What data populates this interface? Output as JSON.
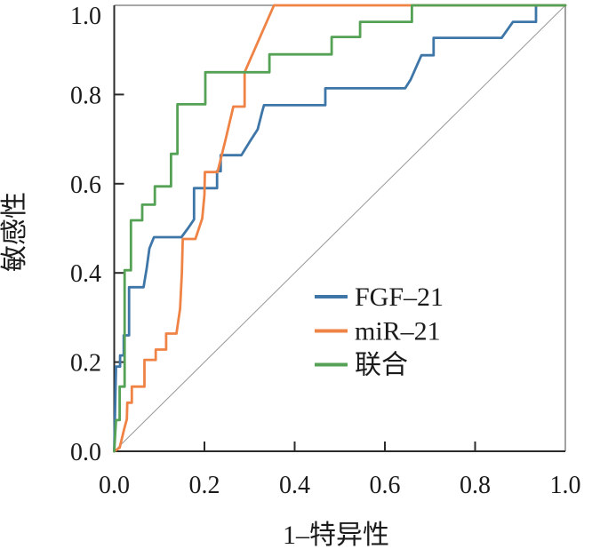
{
  "figure": {
    "background": "#ffffff"
  },
  "chart_data": {
    "type": "line",
    "subtype": "roc-curves",
    "title": "",
    "xlabel": "1–特异性",
    "ylabel": "敏感性",
    "xlim": [
      0,
      1
    ],
    "ylim": [
      0,
      1
    ],
    "grid": false,
    "legend_position": "inside-middle-right",
    "axis_ticks": {
      "x": {
        "values": [
          0,
          0.2,
          0.4,
          0.6,
          0.8,
          1
        ],
        "labels": [
          "0.0",
          "0.2",
          "0.4",
          "0.6",
          "0.8",
          "1.0"
        ],
        "marked": [
          0.2,
          0.4,
          0.6,
          0.8
        ]
      },
      "y": {
        "values": [
          0,
          0.2,
          0.4,
          0.6,
          0.8,
          1
        ],
        "labels": [
          "0.0",
          "0.2",
          "0.4",
          "0.6",
          "0.8",
          "1.0"
        ],
        "marked": [
          0.2,
          0.4,
          0.6,
          0.8
        ]
      }
    },
    "reference_line": {
      "points": [
        [
          0,
          0
        ],
        [
          1,
          1
        ]
      ],
      "color": "#9a9a9a"
    },
    "series": [
      {
        "name": "FGF–21",
        "color": "#3E76A8",
        "points": [
          [
            0,
            0
          ],
          [
            0.004,
            0.19
          ],
          [
            0.013,
            0.19
          ],
          [
            0.013,
            0.215
          ],
          [
            0.021,
            0.215
          ],
          [
            0.021,
            0.26
          ],
          [
            0.033,
            0.26
          ],
          [
            0.033,
            0.368
          ],
          [
            0.065,
            0.368
          ],
          [
            0.072,
            0.41
          ],
          [
            0.078,
            0.455
          ],
          [
            0.088,
            0.48
          ],
          [
            0.149,
            0.48
          ],
          [
            0.165,
            0.502
          ],
          [
            0.177,
            0.52
          ],
          [
            0.177,
            0.59
          ],
          [
            0.228,
            0.59
          ],
          [
            0.228,
            0.628
          ],
          [
            0.236,
            0.628
          ],
          [
            0.236,
            0.664
          ],
          [
            0.282,
            0.664
          ],
          [
            0.302,
            0.697
          ],
          [
            0.318,
            0.722
          ],
          [
            0.328,
            0.762
          ],
          [
            0.332,
            0.776
          ],
          [
            0.468,
            0.776
          ],
          [
            0.468,
            0.814
          ],
          [
            0.645,
            0.814
          ],
          [
            0.657,
            0.833
          ],
          [
            0.67,
            0.863
          ],
          [
            0.681,
            0.888
          ],
          [
            0.708,
            0.888
          ],
          [
            0.708,
            0.927
          ],
          [
            0.859,
            0.927
          ],
          [
            0.884,
            0.963
          ],
          [
            0.935,
            0.963
          ],
          [
            0.935,
            1
          ],
          [
            1,
            1
          ]
        ]
      },
      {
        "name": "miR–21",
        "color": "#EF8345",
        "points": [
          [
            0,
            0
          ],
          [
            0.012,
            0.008
          ],
          [
            0.022,
            0.05
          ],
          [
            0.028,
            0.072
          ],
          [
            0.029,
            0.109
          ],
          [
            0.039,
            0.109
          ],
          [
            0.039,
            0.145
          ],
          [
            0.067,
            0.145
          ],
          [
            0.067,
            0.205
          ],
          [
            0.092,
            0.205
          ],
          [
            0.092,
            0.228
          ],
          [
            0.115,
            0.228
          ],
          [
            0.115,
            0.264
          ],
          [
            0.138,
            0.264
          ],
          [
            0.146,
            0.32
          ],
          [
            0.15,
            0.4
          ],
          [
            0.152,
            0.476
          ],
          [
            0.18,
            0.476
          ],
          [
            0.195,
            0.522
          ],
          [
            0.2,
            0.575
          ],
          [
            0.201,
            0.626
          ],
          [
            0.229,
            0.626
          ],
          [
            0.247,
            0.7
          ],
          [
            0.264,
            0.773
          ],
          [
            0.289,
            0.773
          ],
          [
            0.289,
            0.85
          ],
          [
            0.354,
            1
          ],
          [
            1,
            1
          ]
        ]
      },
      {
        "name": "联合",
        "color": "#55A256",
        "points": [
          [
            0,
            0
          ],
          [
            0.004,
            0.07
          ],
          [
            0.012,
            0.07
          ],
          [
            0.012,
            0.145
          ],
          [
            0.023,
            0.145
          ],
          [
            0.023,
            0.406
          ],
          [
            0.037,
            0.406
          ],
          [
            0.037,
            0.518
          ],
          [
            0.062,
            0.518
          ],
          [
            0.062,
            0.553
          ],
          [
            0.09,
            0.553
          ],
          [
            0.09,
            0.594
          ],
          [
            0.126,
            0.594
          ],
          [
            0.126,
            0.667
          ],
          [
            0.14,
            0.667
          ],
          [
            0.14,
            0.778
          ],
          [
            0.202,
            0.778
          ],
          [
            0.202,
            0.85
          ],
          [
            0.344,
            0.85
          ],
          [
            0.344,
            0.89
          ],
          [
            0.482,
            0.89
          ],
          [
            0.482,
            0.929
          ],
          [
            0.545,
            0.929
          ],
          [
            0.545,
            0.963
          ],
          [
            0.66,
            0.963
          ],
          [
            0.66,
            1
          ],
          [
            1,
            1
          ]
        ]
      }
    ]
  }
}
